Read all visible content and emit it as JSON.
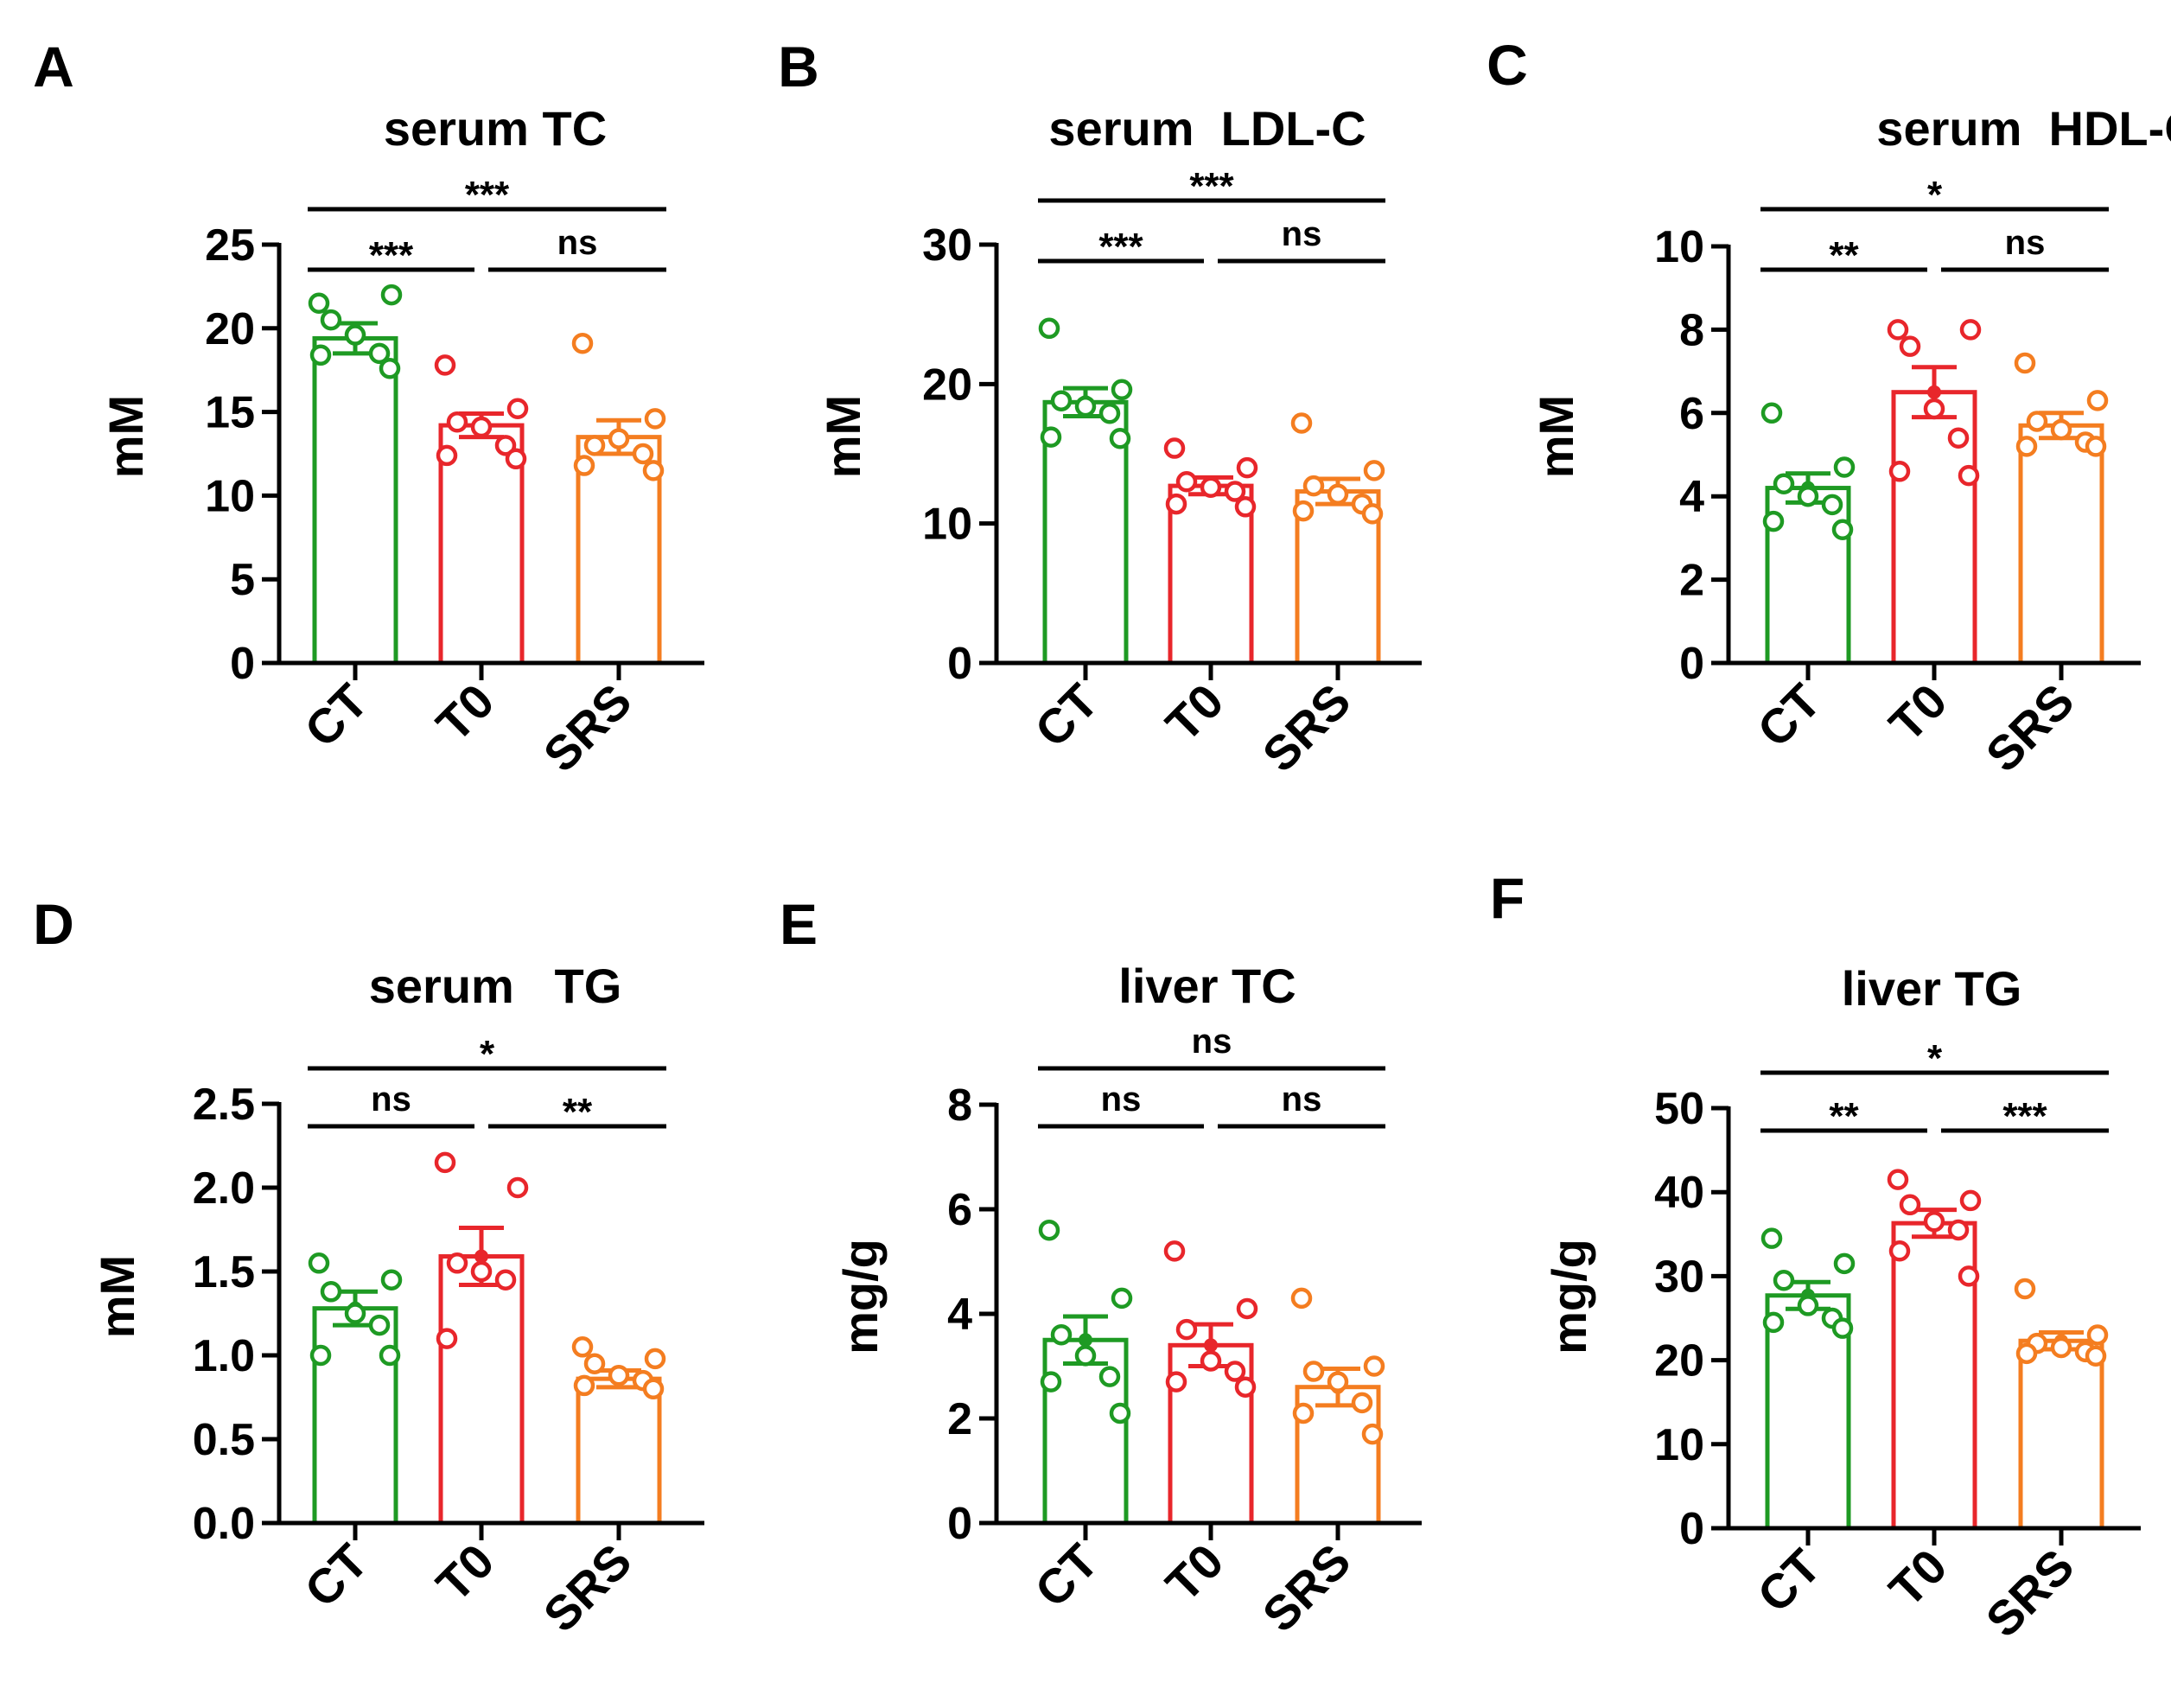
{
  "colors": {
    "CT": "#1e9a23",
    "T0": "#e8262b",
    "SRS": "#f47d20",
    "axis": "#000000"
  },
  "chart_data": [
    {
      "panel": "A",
      "type": "bar",
      "title": "serum TC",
      "ylabel": "mM",
      "categories": [
        "CT",
        "T0",
        "SRS"
      ],
      "yticks": [
        "0",
        "5",
        "10",
        "15",
        "20",
        "25"
      ],
      "ylim": [
        0,
        25
      ],
      "values": [
        19.4,
        14.2,
        13.5
      ],
      "sem": [
        0.9,
        0.7,
        1.0
      ],
      "points": [
        [
          21.5,
          22.0,
          20.5,
          19.6,
          18.5,
          18.4,
          17.6
        ],
        [
          17.8,
          15.2,
          14.4,
          14.1,
          13.0,
          12.4,
          12.2
        ],
        [
          19.1,
          14.6,
          13.0,
          13.4,
          12.5,
          11.8,
          11.5
        ]
      ],
      "comparisons": [
        {
          "from": 0,
          "to": 2,
          "label": "***",
          "level": 2
        },
        {
          "from": 0,
          "to": 1,
          "label": "***",
          "level": 1
        },
        {
          "from": 1,
          "to": 2,
          "label": "ns",
          "level": 1
        }
      ]
    },
    {
      "panel": "B",
      "type": "bar",
      "title": "serum  LDL-C",
      "ylabel": "mM",
      "categories": [
        "CT",
        "T0",
        "SRS"
      ],
      "yticks": [
        "0",
        "10",
        "20",
        "30"
      ],
      "ylim": [
        0,
        30
      ],
      "values": [
        18.7,
        12.7,
        12.3
      ],
      "sem": [
        1.0,
        0.6,
        0.9
      ],
      "points": [
        [
          24.0,
          19.6,
          18.8,
          18.4,
          17.9,
          16.2,
          16.1
        ],
        [
          15.4,
          14.0,
          13.0,
          12.6,
          12.3,
          11.4,
          11.2
        ],
        [
          17.2,
          13.8,
          12.7,
          12.1,
          11.4,
          10.9,
          10.7
        ]
      ],
      "comparisons": [
        {
          "from": 0,
          "to": 2,
          "label": "***",
          "level": 2
        },
        {
          "from": 0,
          "to": 1,
          "label": "***",
          "level": 1
        },
        {
          "from": 1,
          "to": 2,
          "label": "ns",
          "level": 1
        }
      ]
    },
    {
      "panel": "C",
      "type": "bar",
      "title": "serum  HDL-C",
      "ylabel": "mM",
      "categories": [
        "CT",
        "T0",
        "SRS"
      ],
      "yticks": [
        "0",
        "2",
        "4",
        "6",
        "8",
        "10"
      ],
      "ylim": [
        0,
        10
      ],
      "values": [
        4.2,
        6.5,
        5.7
      ],
      "sem": [
        0.35,
        0.6,
        0.3
      ],
      "points": [
        [
          6.0,
          4.7,
          4.3,
          4.0,
          3.8,
          3.4,
          3.2
        ],
        [
          8.0,
          8.0,
          7.6,
          6.1,
          5.4,
          4.6,
          4.5
        ],
        [
          7.2,
          6.3,
          5.8,
          5.6,
          5.3,
          5.2,
          5.2
        ]
      ],
      "comparisons": [
        {
          "from": 0,
          "to": 2,
          "label": "*",
          "level": 2
        },
        {
          "from": 0,
          "to": 1,
          "label": "**",
          "level": 1
        },
        {
          "from": 1,
          "to": 2,
          "label": "ns",
          "level": 1
        }
      ]
    },
    {
      "panel": "D",
      "type": "bar",
      "title": "serum   TG",
      "ylabel": "mM",
      "categories": [
        "CT",
        "T0",
        "SRS"
      ],
      "yticks": [
        "0.0",
        "0.5",
        "1.0",
        "1.5",
        "2.0",
        "2.5"
      ],
      "ylim": [
        0,
        2.5
      ],
      "values": [
        1.28,
        1.59,
        0.86
      ],
      "sem": [
        0.1,
        0.17,
        0.05
      ],
      "points": [
        [
          1.55,
          1.45,
          1.38,
          1.25,
          1.18,
          1.0,
          1.0
        ],
        [
          2.15,
          2.0,
          1.55,
          1.5,
          1.45,
          1.1
        ],
        [
          1.05,
          0.98,
          0.95,
          0.88,
          0.85,
          0.82,
          0.8
        ]
      ],
      "comparisons": [
        {
          "from": 0,
          "to": 2,
          "label": "*",
          "level": 2
        },
        {
          "from": 0,
          "to": 1,
          "label": "ns",
          "level": 1
        },
        {
          "from": 1,
          "to": 2,
          "label": "**",
          "level": 1
        }
      ]
    },
    {
      "panel": "E",
      "type": "bar",
      "title": "liver TC",
      "ylabel": "mg/g",
      "categories": [
        "CT",
        "T0",
        "SRS"
      ],
      "yticks": [
        "0",
        "2",
        "4",
        "6",
        "8"
      ],
      "ylim": [
        0,
        8
      ],
      "values": [
        3.5,
        3.4,
        2.6
      ],
      "sem": [
        0.45,
        0.4,
        0.35
      ],
      "points": [
        [
          5.6,
          4.3,
          3.6,
          3.2,
          2.8,
          2.7,
          2.1
        ],
        [
          5.2,
          4.1,
          3.7,
          3.1,
          2.9,
          2.7,
          2.6
        ],
        [
          4.3,
          3.0,
          2.9,
          2.7,
          2.3,
          2.1,
          1.7
        ]
      ],
      "comparisons": [
        {
          "from": 0,
          "to": 2,
          "label": "ns",
          "level": 2
        },
        {
          "from": 0,
          "to": 1,
          "label": "ns",
          "level": 1
        },
        {
          "from": 1,
          "to": 2,
          "label": "ns",
          "level": 1
        }
      ]
    },
    {
      "panel": "F",
      "type": "bar",
      "title": "liver TG",
      "ylabel": "mg/g",
      "categories": [
        "CT",
        "T0",
        "SRS"
      ],
      "yticks": [
        "0",
        "10",
        "20",
        "30",
        "40",
        "50"
      ],
      "ylim": [
        0,
        50
      ],
      "values": [
        27.7,
        36.3,
        22.3
      ],
      "sem": [
        1.6,
        1.6,
        1.0
      ],
      "points": [
        [
          34.5,
          31.5,
          29.5,
          26.5,
          25.0,
          24.5,
          23.8
        ],
        [
          41.5,
          39.0,
          38.5,
          36.5,
          35.5,
          33.0,
          30.0
        ],
        [
          28.5,
          23.0,
          22.0,
          21.5,
          21.0,
          20.8,
          20.5
        ]
      ],
      "comparisons": [
        {
          "from": 0,
          "to": 2,
          "label": "*",
          "level": 2
        },
        {
          "from": 0,
          "to": 1,
          "label": "**",
          "level": 1
        },
        {
          "from": 1,
          "to": 2,
          "label": "***",
          "level": 1
        }
      ]
    }
  ]
}
